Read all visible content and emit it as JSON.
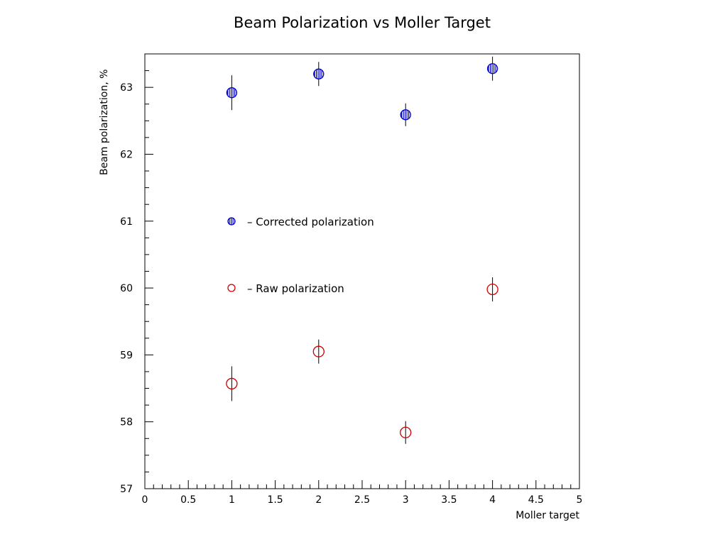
{
  "chart_data": {
    "type": "scatter",
    "title": "Beam Polarization vs Moller Target",
    "xlabel": "Moller target",
    "ylabel": "Beam polarization, %",
    "xlim": [
      0,
      5
    ],
    "ylim": [
      57,
      63.5
    ],
    "x_ticks": [
      "0",
      "0.5",
      "1",
      "1.5",
      "2",
      "2.5",
      "3",
      "3.5",
      "4",
      "4.5",
      "5"
    ],
    "y_ticks": [
      "57",
      "58",
      "59",
      "60",
      "61",
      "62",
      "63"
    ],
    "grid": false,
    "legend_position": "inside-left",
    "series": [
      {
        "name": "Corrected polarization",
        "legend_label": "– Corrected polarization",
        "color": "#0000cc",
        "marker": "hatched-circle",
        "points": [
          {
            "x": 1,
            "y": 62.92,
            "err": 0.26
          },
          {
            "x": 2,
            "y": 63.2,
            "err": 0.18
          },
          {
            "x": 3,
            "y": 62.59,
            "err": 0.17
          },
          {
            "x": 4,
            "y": 63.28,
            "err": 0.18
          }
        ]
      },
      {
        "name": "Raw polarization",
        "legend_label": "– Raw polarization",
        "color": "#cc0000",
        "marker": "open-circle",
        "points": [
          {
            "x": 1,
            "y": 58.57,
            "err": 0.26
          },
          {
            "x": 2,
            "y": 59.05,
            "err": 0.18
          },
          {
            "x": 3,
            "y": 57.84,
            "err": 0.17
          },
          {
            "x": 4,
            "y": 59.98,
            "err": 0.18
          }
        ]
      }
    ]
  }
}
